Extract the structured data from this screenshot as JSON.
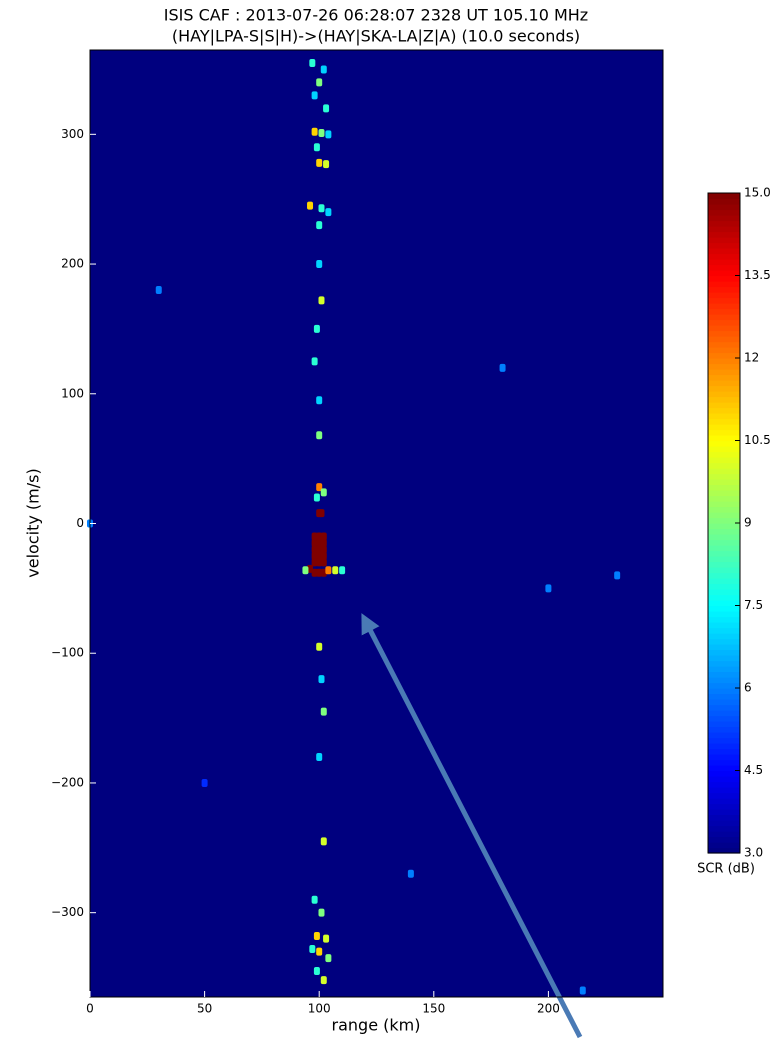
{
  "chart_data": {
    "type": "heatmap",
    "title": "ISIS CAF : 2013-07-26 06:28:07 2328 UT 105.10 MHz",
    "subtitle": "(HAY|LPA-S|S|H)->(HAY|SKA-LA|Z|A) (10.0 seconds)",
    "xlabel": "range (km)",
    "ylabel": "velocity (m/s)",
    "colorbar_label": "SCR (dB)",
    "xlim": [
      0,
      250
    ],
    "ylim": [
      -365,
      365
    ],
    "xticks": [
      0,
      50,
      100,
      150,
      200
    ],
    "yticks": [
      {
        "value": -300,
        "label": "−300"
      },
      {
        "value": -200,
        "label": "−200"
      },
      {
        "value": -100,
        "label": "−100"
      },
      0,
      100,
      200,
      300
    ],
    "clim": [
      3,
      15
    ],
    "cticks": [
      {
        "value": 3,
        "label": "3.0"
      },
      4.5,
      6.0,
      7.5,
      9.0,
      10.5,
      12.0,
      13.5,
      {
        "value": 15,
        "label": "15.0"
      }
    ],
    "colormap": [
      "#00007f",
      "#0000ff",
      "#007fff",
      "#00ffff",
      "#7fff7f",
      "#ffff00",
      "#ff7f00",
      "#ff0000",
      "#7f0000"
    ],
    "x": [
      97,
      102,
      100,
      98,
      103,
      98,
      101,
      104,
      99,
      100,
      103,
      96,
      101,
      104,
      100,
      100,
      101,
      99,
      98,
      100,
      100,
      100,
      102,
      99,
      100,
      101,
      98,
      100,
      102,
      98,
      100,
      102,
      98,
      100,
      102,
      98,
      100,
      102,
      98,
      100,
      102,
      96,
      98,
      100,
      102,
      104,
      107,
      110,
      94,
      100,
      101,
      102,
      100,
      102,
      98,
      101,
      99,
      103,
      97,
      100,
      104,
      99,
      102,
      30,
      180,
      200,
      50,
      215,
      140,
      230,
      0
    ],
    "y": [
      355,
      350,
      340,
      330,
      320,
      302,
      301,
      300,
      290,
      278,
      277,
      245,
      243,
      240,
      230,
      200,
      172,
      150,
      125,
      95,
      68,
      28,
      24,
      20,
      8,
      8,
      -10,
      -10,
      -10,
      -15,
      -15,
      -15,
      -20,
      -20,
      -20,
      -25,
      -25,
      -25,
      -30,
      -30,
      -30,
      -35,
      -38,
      -38,
      -38,
      -36,
      -36,
      -36,
      -36,
      -95,
      -120,
      -145,
      -180,
      -245,
      -290,
      -300,
      -318,
      -320,
      -328,
      -330,
      -335,
      -345,
      -352,
      180,
      120,
      -50,
      -200,
      -360,
      -270,
      -40,
      0
    ],
    "values": [
      8,
      7,
      9,
      7,
      8,
      11,
      9,
      7,
      8,
      11,
      10,
      11,
      8,
      7,
      8,
      7,
      10,
      8,
      8,
      7,
      9,
      12,
      9,
      8,
      15,
      15,
      15,
      15,
      15,
      15,
      15,
      15,
      15,
      15,
      15,
      15,
      15,
      15,
      15,
      15,
      15,
      15,
      15,
      15,
      15,
      12,
      10,
      8,
      9,
      10,
      7,
      9,
      7,
      10,
      8,
      9,
      11,
      10,
      8,
      11,
      9,
      8,
      10,
      6,
      6,
      6,
      5,
      6,
      6,
      6,
      6
    ]
  }
}
